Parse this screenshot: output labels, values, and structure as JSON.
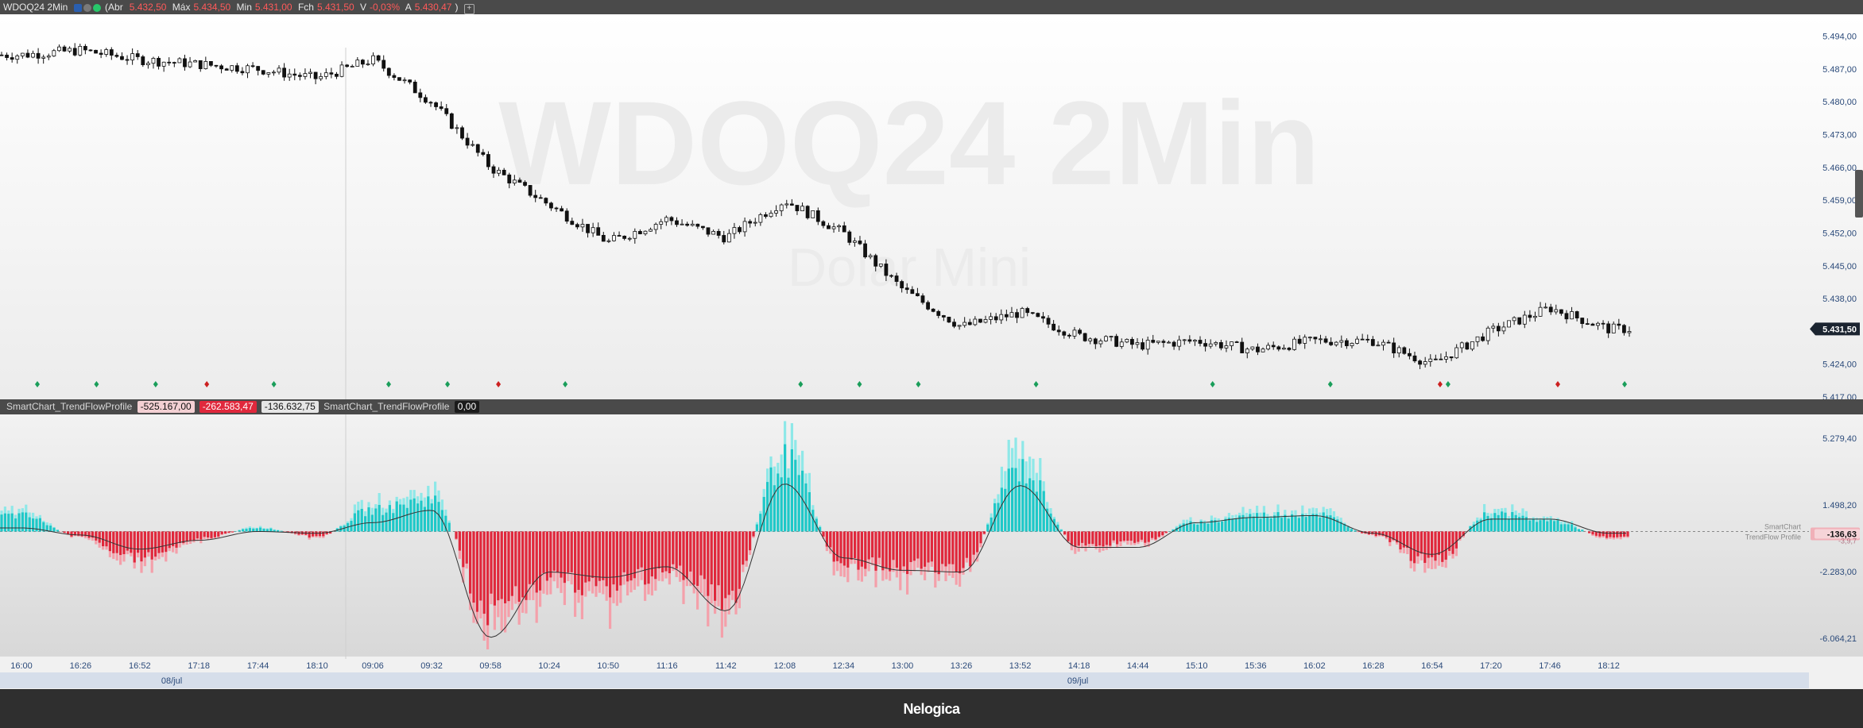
{
  "header": {
    "symbol": "WDOQ24 2Min",
    "abr_label": "Abr",
    "abr": "5.432,50",
    "max_label": "Máx",
    "max": "5.434,50",
    "min_label": "Min",
    "min": "5.431,00",
    "fch_label": "Fch",
    "fch": "5.431,50",
    "var_label": "V",
    "var": "-0,03%",
    "a_label": "A",
    "a": "5.430,47"
  },
  "watermark": {
    "title": "WDOQ24 2Min",
    "subtitle": "Dolar Mini"
  },
  "indicator_header": {
    "name1": "SmartChart_TrendFlowProfile",
    "v1": "-525.167,00",
    "v2": "-262.583,47",
    "v3": "-136.632,75",
    "name2": "SmartChart_TrendFlowProfile",
    "v4": "0,00"
  },
  "price_axis": [
    "5.494,00",
    "5.487,00",
    "5.480,00",
    "5.473,00",
    "5.466,00",
    "5.459,00",
    "5.452,00",
    "5.445,00",
    "5.438,00",
    "5.431,50",
    "5.424,00",
    "5.417,00"
  ],
  "indicator_axis": [
    "5.279,40",
    "1.498,20",
    "-2.283,00",
    "-6.064,21"
  ],
  "indicator_label": {
    "line1": "SmartChart",
    "line2": "TrendFlow Profile",
    "value": "-136,63",
    "ghost": "-3,9,7"
  },
  "time_axis": [
    "16:00",
    "16:26",
    "16:52",
    "17:18",
    "17:44",
    "18:10",
    "09:06",
    "09:32",
    "09:58",
    "10:24",
    "10:50",
    "11:16",
    "11:42",
    "12:08",
    "12:34",
    "13:00",
    "13:26",
    "13:52",
    "14:18",
    "14:44",
    "15:10",
    "15:36",
    "16:02",
    "16:28",
    "16:54",
    "17:20",
    "17:46",
    "18:12"
  ],
  "date_axis": [
    "08/jul",
    "09/jul"
  ],
  "colors": {
    "up": "#1ec8c8",
    "up_light": "#8ee8e8",
    "down": "#e0283c",
    "down_light": "#f4a0aa",
    "price_tag": "#1b2430",
    "marker_green": "#1a9e5a",
    "marker_red": "#cc2020"
  },
  "footer": {
    "logo": "Nelogica"
  },
  "chart_data": [
    {
      "type": "candlestick",
      "title": "WDOQ24 2Min",
      "subtitle": "Dolar Mini",
      "ylim": [
        5417,
        5498
      ],
      "last_price": 5431.5,
      "x": [
        "16:00",
        "16:26",
        "16:52",
        "17:18",
        "17:44",
        "18:10",
        "09:06",
        "09:32",
        "09:58",
        "10:24",
        "10:50",
        "11:16",
        "11:42",
        "12:08",
        "12:34",
        "13:00",
        "13:26",
        "13:52",
        "14:18",
        "14:44",
        "15:10",
        "15:36",
        "16:02",
        "16:28",
        "16:54",
        "17:20",
        "17:46",
        "18:12"
      ],
      "close_anchors": [
        5490,
        5491,
        5489,
        5488,
        5487,
        5485,
        5489,
        5480,
        5466,
        5458,
        5450,
        5455,
        5451,
        5459,
        5452,
        5440,
        5432,
        5435,
        5430,
        5428,
        5429,
        5427,
        5429,
        5429,
        5424,
        5431,
        5436,
        5431.5
      ],
      "markers_green": [
        "16:00",
        "16:26",
        "16:52",
        "17:44",
        "09:06",
        "09:32",
        "10:24",
        "12:08",
        "12:34",
        "13:00",
        "13:52",
        "15:10",
        "16:02",
        "16:54",
        "18:12"
      ],
      "markers_red": [
        "17:18",
        "09:58",
        "16:54",
        "17:46"
      ]
    },
    {
      "type": "bar",
      "title": "SmartChart_TrendFlowProfile",
      "ylim": [
        -7000,
        6500
      ],
      "ticks": [
        5279.4,
        1498.2,
        -2283.0,
        -6064.21
      ],
      "last_value": -136.63,
      "x": [
        "16:00",
        "16:26",
        "16:52",
        "17:18",
        "17:44",
        "18:10",
        "09:06",
        "09:32",
        "09:58",
        "10:24",
        "10:50",
        "11:16",
        "11:42",
        "12:08",
        "12:34",
        "13:00",
        "13:26",
        "13:52",
        "14:18",
        "14:44",
        "15:10",
        "15:36",
        "16:02",
        "16:28",
        "16:54",
        "17:20",
        "17:46",
        "18:12"
      ],
      "values": [
        900,
        -300,
        -1500,
        -400,
        200,
        -300,
        1200,
        1800,
        -4500,
        -2800,
        -3000,
        -2200,
        -3800,
        4000,
        -1800,
        -2000,
        -2000,
        3500,
        -800,
        -600,
        500,
        900,
        1000,
        -200,
        -1800,
        1000,
        600,
        -300
      ],
      "smooth_line": [
        200,
        -200,
        -1000,
        -500,
        0,
        -100,
        500,
        1200,
        -6000,
        -2300,
        -2600,
        -2000,
        -4500,
        2700,
        -1500,
        -2200,
        -2300,
        2600,
        -900,
        -900,
        500,
        800,
        900,
        -100,
        -1300,
        700,
        700,
        -100
      ]
    }
  ]
}
